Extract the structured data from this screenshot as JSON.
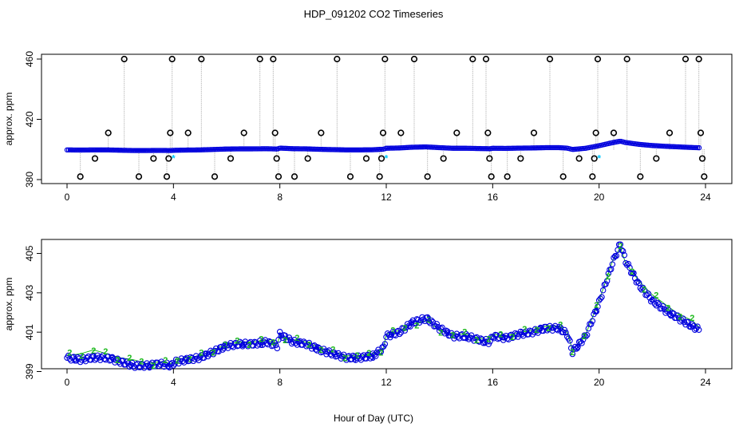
{
  "title": "HDP_091202  CO2 Timeseries",
  "xlabel": "Hour of Day (UTC)",
  "colors": {
    "outlier": "#000000",
    "flagged": "#00c8ff",
    "main": "#0000dd",
    "series2": "#1fba1f",
    "spike_line": "#999999"
  },
  "chart_data": [
    {
      "type": "scatter",
      "ylabel": "approx. ppm",
      "xlim": [
        0,
        24
      ],
      "ylim": [
        380,
        460
      ],
      "xticks": [
        "0",
        "4",
        "8",
        "12",
        "16",
        "20",
        "24"
      ],
      "yticks": [
        "380",
        "420",
        "460"
      ],
      "grid": false,
      "series": [
        {
          "role": "outliers",
          "marker": "open-circle",
          "x": [
            0.5,
            1.05,
            1.55,
            2.15,
            2.7,
            3.25,
            3.75,
            3.82,
            3.88,
            3.95,
            4.55,
            5.05,
            5.55,
            6.15,
            6.65,
            7.25,
            7.75,
            7.82,
            7.88,
            7.95,
            8.55,
            9.05,
            9.55,
            10.15,
            10.65,
            11.25,
            11.75,
            11.82,
            11.88,
            11.95,
            12.55,
            13.05,
            13.55,
            14.15,
            14.65,
            15.25,
            15.75,
            15.82,
            15.88,
            15.95,
            16.55,
            17.05,
            17.55,
            18.15,
            18.65,
            19.25,
            19.75,
            19.82,
            19.88,
            19.95,
            20.55,
            21.05,
            21.55,
            22.15,
            22.65,
            23.25,
            23.75,
            23.82,
            23.88,
            23.95
          ],
          "y": [
            382,
            394,
            411,
            460,
            382,
            394,
            382,
            394,
            411,
            460,
            411,
            460,
            382,
            394,
            411,
            460,
            460,
            411,
            394,
            382,
            382,
            394,
            411,
            460,
            382,
            394,
            382,
            394,
            411,
            460,
            411,
            460,
            382,
            394,
            411,
            460,
            460,
            411,
            394,
            382,
            382,
            394,
            411,
            460,
            382,
            394,
            382,
            394,
            411,
            460,
            411,
            460,
            382,
            394,
            411,
            460,
            460,
            411,
            394,
            382
          ]
        },
        {
          "role": "flagged",
          "marker": "star",
          "x": [
            4.0,
            12.0,
            20.0
          ],
          "y": [
            394,
            394,
            394
          ]
        }
      ]
    },
    {
      "type": "line",
      "ylabel": "approx. ppm",
      "xlim": [
        0,
        24
      ],
      "ylim": [
        399,
        405.5
      ],
      "xticks": [
        "0",
        "4",
        "8",
        "12",
        "16",
        "20",
        "24"
      ],
      "yticks": [
        "399",
        "401",
        "403",
        "405"
      ],
      "grid": false,
      "series": [
        {
          "role": "main",
          "marker": "3",
          "x": [
            0.0,
            0.5,
            1.0,
            1.5,
            2.0,
            2.5,
            3.0,
            3.5,
            3.9,
            4.1,
            4.5,
            5.0,
            5.5,
            6.0,
            6.5,
            7.0,
            7.5,
            7.9,
            8.0,
            8.5,
            9.0,
            9.5,
            10.0,
            10.5,
            11.0,
            11.5,
            11.9,
            12.0,
            12.5,
            13.0,
            13.5,
            14.0,
            14.5,
            15.0,
            15.5,
            15.9,
            16.0,
            16.5,
            17.0,
            17.5,
            18.0,
            18.5,
            18.8,
            19.0,
            19.5,
            20.0,
            20.5,
            20.8,
            21.0,
            21.5,
            22.0,
            22.5,
            23.0,
            23.5,
            23.8
          ],
          "y": [
            399.7,
            399.6,
            399.7,
            399.7,
            399.5,
            399.3,
            399.3,
            399.4,
            399.3,
            399.5,
            399.6,
            399.7,
            400.0,
            400.3,
            400.4,
            400.4,
            400.5,
            400.3,
            400.9,
            400.5,
            400.4,
            400.1,
            399.9,
            399.7,
            399.7,
            399.8,
            400.2,
            400.8,
            401.0,
            401.5,
            401.7,
            401.2,
            400.8,
            400.8,
            400.6,
            400.5,
            400.8,
            400.7,
            400.9,
            401.0,
            401.2,
            401.2,
            400.9,
            400.0,
            400.8,
            402.5,
            404.5,
            405.5,
            404.6,
            403.4,
            402.6,
            402.1,
            401.7,
            401.3,
            401.1
          ]
        },
        {
          "role": "secondary",
          "marker": "2",
          "x": [
            0.0,
            0.5,
            1.0,
            1.5,
            2.0,
            2.5,
            3.0,
            3.5,
            3.9,
            4.1,
            4.5,
            5.0,
            5.5,
            6.0,
            6.5,
            7.0,
            7.5,
            7.9,
            8.0,
            8.5,
            9.0,
            9.5,
            10.0,
            10.5,
            11.0,
            11.5,
            11.9,
            12.0,
            12.5,
            13.0,
            13.5,
            14.0,
            14.5,
            15.0,
            15.5,
            15.9,
            16.0,
            16.5,
            17.0,
            17.5,
            18.0,
            18.5,
            18.8,
            19.0,
            19.5,
            20.0,
            20.5,
            20.8,
            21.0,
            21.5,
            22.0,
            22.5,
            23.0,
            23.5,
            23.8
          ],
          "y": [
            399.8,
            399.9,
            400.1,
            399.9,
            399.7,
            399.6,
            399.4,
            399.5,
            399.4,
            399.6,
            399.7,
            399.8,
            400.1,
            400.4,
            400.5,
            400.5,
            400.6,
            400.4,
            400.8,
            400.6,
            400.5,
            400.2,
            400.0,
            399.8,
            399.8,
            399.9,
            400.2,
            400.9,
            401.1,
            401.4,
            401.6,
            401.1,
            400.9,
            400.9,
            400.7,
            400.6,
            400.9,
            400.8,
            401.0,
            401.1,
            401.3,
            401.3,
            401.0,
            400.1,
            400.9,
            402.6,
            404.6,
            405.3,
            404.5,
            403.6,
            402.9,
            402.4,
            401.9,
            401.6,
            401.2
          ]
        }
      ]
    }
  ]
}
